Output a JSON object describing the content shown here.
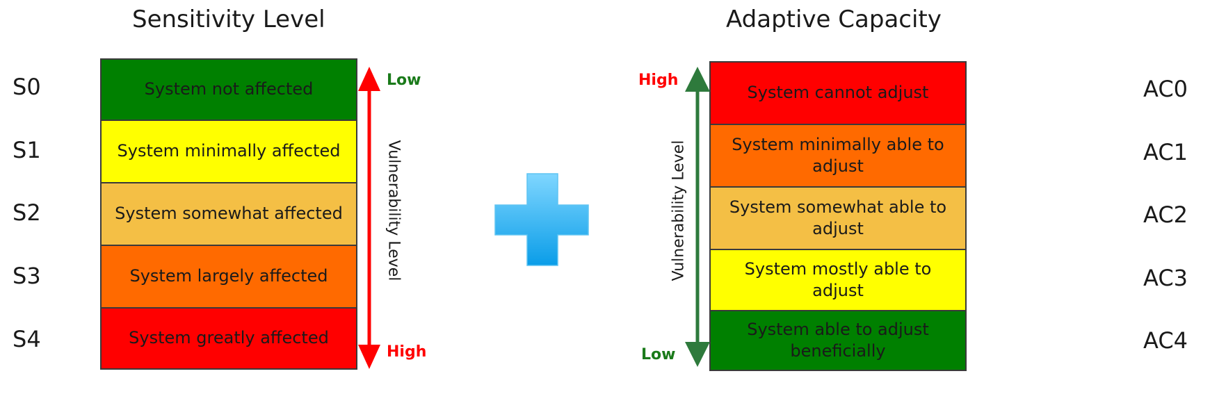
{
  "sensitivity": {
    "title": "Sensitivity Level",
    "axis_label": "Vulnerability Level",
    "top_label": "Low",
    "bottom_label": "High",
    "top_color": "#1a7a1a",
    "bottom_color": "#ff0000",
    "arrow_color": "#ff0000",
    "levels": [
      {
        "code": "S0",
        "text": "System not affected",
        "color": "#008000"
      },
      {
        "code": "S1",
        "text": "System minimally affected",
        "color": "#ffff00"
      },
      {
        "code": "S2",
        "text": "System somewhat affected",
        "color": "#f4bf45"
      },
      {
        "code": "S3",
        "text": "System largely affected",
        "color": "#ff6a00"
      },
      {
        "code": "S4",
        "text": "System greatly affected",
        "color": "#ff0000"
      }
    ]
  },
  "adaptive": {
    "title": "Adaptive Capacity",
    "axis_label": "Vulnerability Level",
    "top_label": "High",
    "bottom_label": "Low",
    "top_color": "#ff0000",
    "bottom_color": "#1a7a1a",
    "arrow_color": "#2e7a3c",
    "levels": [
      {
        "code": "AC0",
        "text": "System cannot adjust",
        "color": "#ff0000"
      },
      {
        "code": "AC1",
        "text": "System minimally able to adjust",
        "color": "#ff6a00"
      },
      {
        "code": "AC2",
        "text": "System somewhat able to adjust",
        "color": "#f4bf45"
      },
      {
        "code": "AC3",
        "text": "System mostly able to adjust",
        "color": "#ffff00"
      },
      {
        "code": "AC4",
        "text": "System able to adjust beneficially",
        "color": "#008000"
      }
    ]
  },
  "plus_icon": {
    "icon": "plus-icon",
    "color": "#33b5f0"
  }
}
